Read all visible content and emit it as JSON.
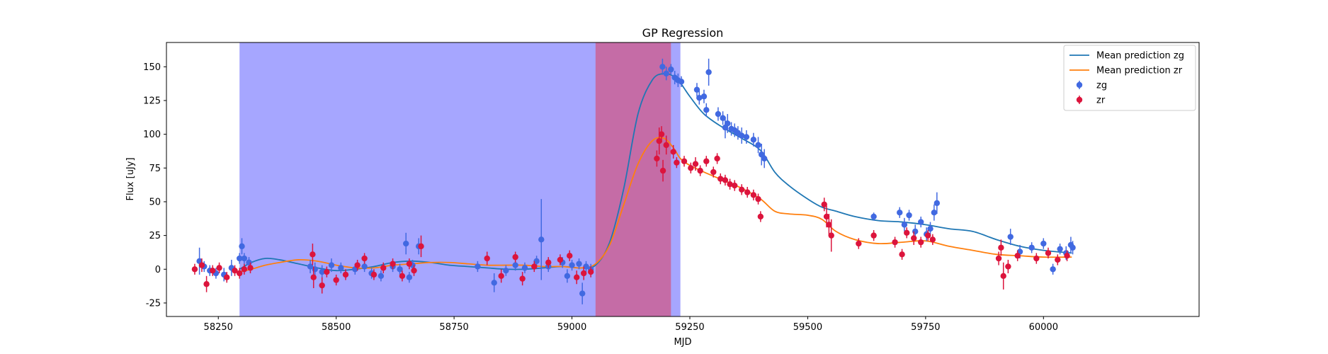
{
  "chart_data": {
    "type": "scatter",
    "title": "GP Regression",
    "xlabel": "MJD",
    "ylabel": "Flux [uJy]",
    "xlim": [
      58140,
      60330
    ],
    "ylim": [
      -35,
      168
    ],
    "xticks": [
      58250,
      58500,
      58750,
      59000,
      59250,
      59500,
      59750,
      60000
    ],
    "yticks": [
      -25,
      0,
      25,
      50,
      75,
      100,
      125,
      150
    ],
    "grid": false,
    "legend_position": "top-right",
    "shaded_regions": [
      {
        "x0": 58295,
        "x1": 59230,
        "color": "#0000ff",
        "opacity": 0.35
      },
      {
        "x0": 59050,
        "x1": 59210,
        "color": "#ff0000",
        "opacity": 0.35
      }
    ],
    "lines": [
      {
        "name": "Mean prediction zg",
        "color": "#1f77b4",
        "x": [
          58295,
          58320,
          58350,
          58380,
          58420,
          58460,
          58500,
          58540,
          58580,
          58620,
          58660,
          58700,
          58740,
          58780,
          58820,
          58860,
          58900,
          58940,
          58980,
          59020,
          59050,
          59080,
          59110,
          59140,
          59170,
          59195,
          59215,
          59230,
          59250,
          59280,
          59320,
          59360,
          59400,
          59430,
          59460,
          59500,
          59530,
          59560,
          59600,
          59650,
          59700,
          59750,
          59800,
          59850,
          59900,
          59950,
          60000,
          60060
        ],
        "y": [
          0,
          5,
          8,
          7,
          4,
          1,
          -1,
          0,
          2,
          5,
          6,
          5,
          3,
          2,
          1,
          0,
          0,
          1,
          2,
          1,
          3,
          20,
          60,
          115,
          140,
          145,
          143,
          138,
          128,
          115,
          105,
          97,
          88,
          72,
          62,
          52,
          46,
          43,
          39,
          36,
          35,
          33,
          30,
          28,
          22,
          17,
          14,
          12
        ]
      },
      {
        "name": "Mean prediction zr",
        "color": "#ff7f0e",
        "x": [
          58295,
          58320,
          58350,
          58380,
          58420,
          58460,
          58500,
          58540,
          58580,
          58620,
          58660,
          58700,
          58740,
          58780,
          58820,
          58860,
          58900,
          58940,
          58980,
          59020,
          59050,
          59080,
          59110,
          59140,
          59170,
          59195,
          59215,
          59230,
          59250,
          59280,
          59320,
          59360,
          59400,
          59430,
          59460,
          59500,
          59530,
          59560,
          59600,
          59650,
          59700,
          59750,
          59800,
          59850,
          59900,
          59950,
          60000,
          60060
        ],
        "y": [
          -2,
          0,
          3,
          5,
          7,
          6,
          3,
          1,
          1,
          3,
          4,
          5,
          5,
          4,
          3,
          3,
          3,
          2,
          2,
          1,
          4,
          18,
          48,
          78,
          95,
          97,
          90,
          82,
          77,
          72,
          66,
          60,
          52,
          43,
          41,
          40,
          37,
          28,
          22,
          19,
          20,
          21,
          17,
          14,
          11,
          10,
          9,
          9
        ]
      }
    ],
    "series": [
      {
        "name": "zg",
        "color": "#4169e1",
        "points": [
          [
            58210,
            6,
            10
          ],
          [
            58220,
            2,
            4
          ],
          [
            58232,
            -1,
            4
          ],
          [
            58245,
            -3,
            4
          ],
          [
            58262,
            -4,
            5
          ],
          [
            58278,
            1,
            6
          ],
          [
            58295,
            8,
            4
          ],
          [
            58300,
            17,
            6
          ],
          [
            58305,
            8,
            4
          ],
          [
            58315,
            5,
            4
          ],
          [
            58445,
            2,
            5
          ],
          [
            58455,
            0,
            5
          ],
          [
            58470,
            -2,
            5
          ],
          [
            58490,
            3,
            5
          ],
          [
            58510,
            1,
            4
          ],
          [
            58540,
            0,
            4
          ],
          [
            58560,
            2,
            4
          ],
          [
            58575,
            -3,
            4
          ],
          [
            58595,
            -5,
            4
          ],
          [
            58620,
            2,
            4
          ],
          [
            58635,
            0,
            4
          ],
          [
            58648,
            19,
            8
          ],
          [
            58655,
            -6,
            4
          ],
          [
            58662,
            3,
            4
          ],
          [
            58675,
            17,
            6
          ],
          [
            58800,
            2,
            4
          ],
          [
            58835,
            -10,
            7
          ],
          [
            58860,
            -1,
            4
          ],
          [
            58880,
            3,
            4
          ],
          [
            58900,
            1,
            4
          ],
          [
            58925,
            6,
            4
          ],
          [
            58935,
            22,
            30
          ],
          [
            58950,
            2,
            4
          ],
          [
            58980,
            5,
            4
          ],
          [
            58990,
            -5,
            5
          ],
          [
            59000,
            3,
            4
          ],
          [
            59015,
            4,
            4
          ],
          [
            59022,
            -18,
            8
          ],
          [
            59030,
            2,
            4
          ],
          [
            59040,
            0,
            4
          ],
          [
            59192,
            150,
            6
          ],
          [
            59200,
            145,
            5
          ],
          [
            59210,
            148,
            4
          ],
          [
            59218,
            142,
            5
          ],
          [
            59225,
            140,
            5
          ],
          [
            59232,
            139,
            4
          ],
          [
            59265,
            133,
            5
          ],
          [
            59270,
            127,
            5
          ],
          [
            59280,
            128,
            5
          ],
          [
            59290,
            146,
            10
          ],
          [
            59285,
            118,
            5
          ],
          [
            59310,
            115,
            5
          ],
          [
            59320,
            112,
            5
          ],
          [
            59325,
            105,
            8
          ],
          [
            59330,
            108,
            7
          ],
          [
            59338,
            104,
            5
          ],
          [
            59345,
            103,
            5
          ],
          [
            59352,
            101,
            5
          ],
          [
            59360,
            99,
            6
          ],
          [
            59370,
            98,
            5
          ],
          [
            59385,
            96,
            5
          ],
          [
            59395,
            92,
            6
          ],
          [
            59402,
            85,
            8
          ],
          [
            59408,
            82,
            7
          ],
          [
            59640,
            39,
            3
          ],
          [
            59695,
            42,
            4
          ],
          [
            59705,
            33,
            5
          ],
          [
            59715,
            40,
            4
          ],
          [
            59728,
            28,
            5
          ],
          [
            59740,
            35,
            4
          ],
          [
            59752,
            26,
            5
          ],
          [
            59760,
            30,
            5
          ],
          [
            59768,
            42,
            6
          ],
          [
            59774,
            49,
            8
          ],
          [
            59930,
            24,
            6
          ],
          [
            59950,
            13,
            5
          ],
          [
            59975,
            16,
            4
          ],
          [
            60000,
            19,
            4
          ],
          [
            60020,
            0,
            4
          ],
          [
            60035,
            15,
            4
          ],
          [
            60048,
            12,
            5
          ],
          [
            60058,
            18,
            6
          ],
          [
            60062,
            16,
            5
          ]
        ]
      },
      {
        "name": "zr",
        "color": "#dc143c",
        "points": [
          [
            58200,
            0,
            4
          ],
          [
            58215,
            3,
            5
          ],
          [
            58225,
            -11,
            6
          ],
          [
            58238,
            -1,
            4
          ],
          [
            58252,
            1,
            4
          ],
          [
            58268,
            -6,
            4
          ],
          [
            58285,
            -1,
            4
          ],
          [
            58295,
            -3,
            4
          ],
          [
            58305,
            0,
            4
          ],
          [
            58318,
            1,
            4
          ],
          [
            58450,
            11,
            8
          ],
          [
            58452,
            -6,
            8
          ],
          [
            58470,
            -12,
            6
          ],
          [
            58480,
            -2,
            4
          ],
          [
            58500,
            -8,
            4
          ],
          [
            58520,
            -4,
            4
          ],
          [
            58545,
            3,
            4
          ],
          [
            58560,
            8,
            4
          ],
          [
            58580,
            -4,
            4
          ],
          [
            58600,
            1,
            4
          ],
          [
            58620,
            4,
            4
          ],
          [
            58640,
            -5,
            4
          ],
          [
            58655,
            4,
            4
          ],
          [
            58665,
            -1,
            4
          ],
          [
            58680,
            17,
            8
          ],
          [
            58820,
            8,
            5
          ],
          [
            58850,
            -5,
            5
          ],
          [
            58880,
            9,
            4
          ],
          [
            58895,
            -7,
            5
          ],
          [
            58920,
            2,
            4
          ],
          [
            58950,
            5,
            4
          ],
          [
            58975,
            7,
            4
          ],
          [
            58995,
            10,
            4
          ],
          [
            59010,
            -6,
            5
          ],
          [
            59025,
            -3,
            5
          ],
          [
            59040,
            -2,
            4
          ],
          [
            59180,
            82,
            6
          ],
          [
            59185,
            95,
            10
          ],
          [
            59190,
            100,
            6
          ],
          [
            59193,
            73,
            8
          ],
          [
            59200,
            92,
            7
          ],
          [
            59215,
            87,
            5
          ],
          [
            59222,
            79,
            4
          ],
          [
            59238,
            80,
            4
          ],
          [
            59252,
            75,
            4
          ],
          [
            59262,
            78,
            5
          ],
          [
            59272,
            73,
            4
          ],
          [
            59285,
            80,
            4
          ],
          [
            59300,
            72,
            4
          ],
          [
            59308,
            82,
            4
          ],
          [
            59315,
            67,
            4
          ],
          [
            59325,
            66,
            4
          ],
          [
            59335,
            63,
            4
          ],
          [
            59345,
            62,
            4
          ],
          [
            59360,
            59,
            4
          ],
          [
            59372,
            57,
            4
          ],
          [
            59385,
            55,
            4
          ],
          [
            59395,
            52,
            4
          ],
          [
            59400,
            39,
            4
          ],
          [
            59535,
            48,
            5
          ],
          [
            59540,
            39,
            8
          ],
          [
            59545,
            33,
            8
          ],
          [
            59550,
            25,
            12
          ],
          [
            59608,
            19,
            4
          ],
          [
            59640,
            25,
            4
          ],
          [
            59685,
            20,
            4
          ],
          [
            59700,
            11,
            4
          ],
          [
            59710,
            27,
            4
          ],
          [
            59725,
            23,
            5
          ],
          [
            59740,
            20,
            4
          ],
          [
            59755,
            25,
            4
          ],
          [
            59765,
            22,
            4
          ],
          [
            59905,
            8,
            5
          ],
          [
            59910,
            16,
            6
          ],
          [
            59915,
            -5,
            10
          ],
          [
            59925,
            2,
            5
          ],
          [
            59945,
            10,
            4
          ],
          [
            59985,
            8,
            4
          ],
          [
            60010,
            12,
            4
          ],
          [
            60030,
            7,
            4
          ],
          [
            60050,
            10,
            4
          ]
        ]
      }
    ]
  }
}
